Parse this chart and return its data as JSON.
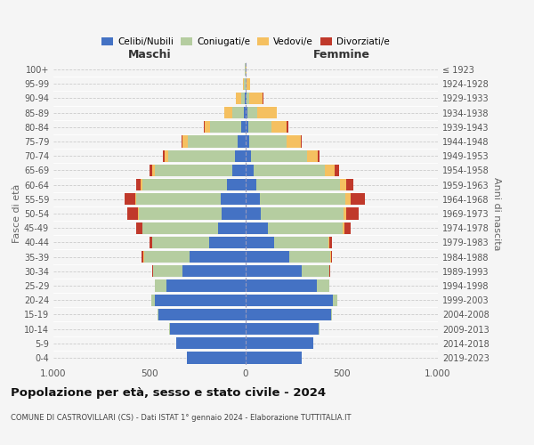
{
  "age_groups": [
    "0-4",
    "5-9",
    "10-14",
    "15-19",
    "20-24",
    "25-29",
    "30-34",
    "35-39",
    "40-44",
    "45-49",
    "50-54",
    "55-59",
    "60-64",
    "65-69",
    "70-74",
    "75-79",
    "80-84",
    "85-89",
    "90-94",
    "95-99",
    "100+"
  ],
  "birth_years": [
    "2019-2023",
    "2014-2018",
    "2009-2013",
    "2004-2008",
    "1999-2003",
    "1994-1998",
    "1989-1993",
    "1984-1988",
    "1979-1983",
    "1974-1978",
    "1969-1973",
    "1964-1968",
    "1959-1963",
    "1954-1958",
    "1949-1953",
    "1944-1948",
    "1939-1943",
    "1934-1938",
    "1929-1933",
    "1924-1928",
    "≤ 1923"
  ],
  "male_celibi": [
    305,
    360,
    395,
    455,
    470,
    410,
    330,
    290,
    190,
    145,
    125,
    130,
    95,
    70,
    55,
    40,
    25,
    10,
    5,
    2,
    2
  ],
  "male_coniugati": [
    1,
    1,
    2,
    5,
    20,
    60,
    150,
    240,
    295,
    390,
    430,
    440,
    440,
    400,
    350,
    260,
    160,
    60,
    20,
    5,
    1
  ],
  "male_vedovi": [
    0,
    0,
    0,
    0,
    1,
    1,
    2,
    2,
    2,
    3,
    5,
    5,
    10,
    15,
    15,
    30,
    30,
    40,
    25,
    5,
    0
  ],
  "male_divorziati": [
    0,
    0,
    0,
    0,
    1,
    1,
    3,
    10,
    15,
    30,
    55,
    55,
    25,
    15,
    10,
    5,
    3,
    2,
    1,
    0,
    0
  ],
  "female_celibi": [
    290,
    350,
    380,
    445,
    455,
    370,
    290,
    225,
    150,
    115,
    80,
    75,
    55,
    40,
    30,
    20,
    15,
    10,
    5,
    2,
    1
  ],
  "female_coniugati": [
    1,
    1,
    2,
    5,
    20,
    65,
    145,
    215,
    280,
    390,
    430,
    445,
    435,
    370,
    290,
    195,
    120,
    50,
    15,
    3,
    1
  ],
  "female_vedovi": [
    0,
    0,
    0,
    0,
    1,
    1,
    2,
    3,
    5,
    10,
    15,
    25,
    35,
    55,
    55,
    70,
    80,
    100,
    70,
    20,
    2
  ],
  "female_divorziati": [
    0,
    0,
    0,
    0,
    1,
    1,
    3,
    8,
    15,
    30,
    65,
    75,
    35,
    20,
    10,
    8,
    5,
    3,
    2,
    0,
    0
  ],
  "colors": {
    "celibi": "#4472c4",
    "coniugati": "#b5cda0",
    "vedovi": "#f5c060",
    "divorziati": "#c0392b"
  },
  "title": "Popolazione per età, sesso e stato civile - 2024",
  "subtitle": "COMUNE DI CASTROVILLARI (CS) - Dati ISTAT 1° gennaio 2024 - Elaborazione TUTTITALIA.IT",
  "xlabel_left": "Maschi",
  "xlabel_right": "Femmine",
  "ylabel_left": "Fasce di età",
  "ylabel_right": "Anni di nascita",
  "xlim": 1000,
  "bg_color": "#f5f5f5",
  "grid_color": "#cccccc"
}
